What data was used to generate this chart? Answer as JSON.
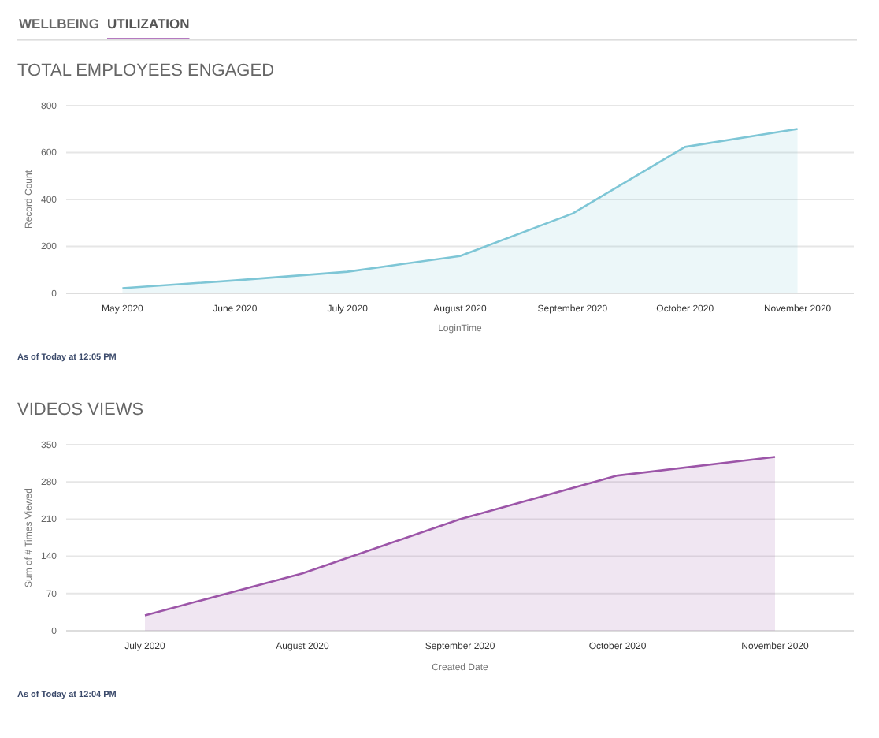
{
  "chart_data": [
    {
      "type": "other",
      "annotations": [
        "WELLBEING",
        "UTILIZATION"
      ]
    },
    {
      "type": "area",
      "title": "TOTAL EMPLOYEES ENGAGED",
      "xlabel": "LoginTime",
      "ylabel": "Record Count",
      "categories": [
        "May 2020",
        "June 2020",
        "July 2020",
        "August 2020",
        "September 2020",
        "October 2020",
        "November 2020"
      ],
      "series": [
        {
          "color": "#7ec6d6",
          "values": [
            22,
            55,
            92,
            159,
            340,
            624,
            701
          ]
        }
      ],
      "ylim": [
        0,
        800
      ],
      "yticks": [
        0,
        200,
        400,
        600,
        800
      ],
      "grid": "y",
      "annotations": [
        "As of Today at 12:05 PM"
      ]
    },
    {
      "type": "area",
      "title": "VIDEOS VIEWS",
      "xlabel": "Created Date",
      "ylabel": "Sum of # Times Viewed",
      "categories": [
        "July 2020",
        "August 2020",
        "September 2020",
        "October 2020",
        "November 2020"
      ],
      "series": [
        {
          "color": "#9c55a8",
          "values": [
            29,
            108,
            210,
            292,
            327
          ]
        }
      ],
      "ylim": [
        0,
        350
      ],
      "yticks": [
        0,
        70,
        140,
        210,
        280,
        350
      ],
      "grid": "y",
      "annotations": [
        "As of Today at 12:04 PM"
      ]
    }
  ]
}
